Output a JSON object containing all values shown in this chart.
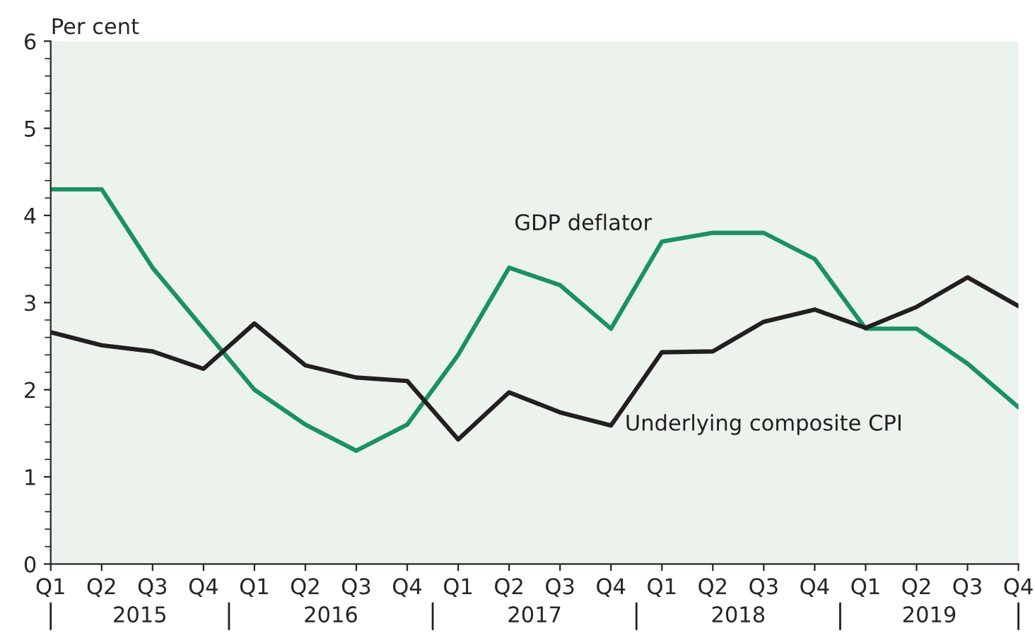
{
  "chart_data": {
    "type": "line",
    "ylabel": "Per cent",
    "categories": [
      "Q1",
      "Q2",
      "Q3",
      "Q4",
      "Q1",
      "Q2",
      "Q3",
      "Q4",
      "Q1",
      "Q2",
      "Q3",
      "Q4",
      "Q1",
      "Q2",
      "Q3",
      "Q4",
      "Q1",
      "Q2",
      "Q3",
      "Q4"
    ],
    "series": [
      {
        "name": "GDP deflator",
        "color": "#1b9163",
        "values": [
          4.3,
          4.3,
          3.4,
          2.7,
          2.0,
          1.6,
          1.3,
          1.6,
          2.4,
          3.4,
          3.2,
          2.7,
          3.7,
          3.8,
          3.8,
          3.5,
          2.7,
          2.7,
          2.3,
          1.8
        ]
      },
      {
        "name": "Underlying composite CPI",
        "color": "#231f20",
        "values": [
          2.66,
          2.51,
          2.44,
          2.24,
          2.76,
          2.28,
          2.14,
          2.1,
          1.43,
          1.97,
          1.74,
          1.59,
          2.43,
          2.44,
          2.78,
          2.92,
          2.71,
          2.95,
          3.29,
          2.96
        ]
      }
    ],
    "annotations": [
      "2015",
      "2016",
      "2017",
      "2018",
      "2019"
    ],
    "ylim": [
      0,
      6
    ],
    "yticks": [
      0,
      1,
      2,
      3,
      4,
      5,
      6
    ],
    "grid": false,
    "legend": false,
    "marker": "none",
    "line_style": "solid"
  }
}
